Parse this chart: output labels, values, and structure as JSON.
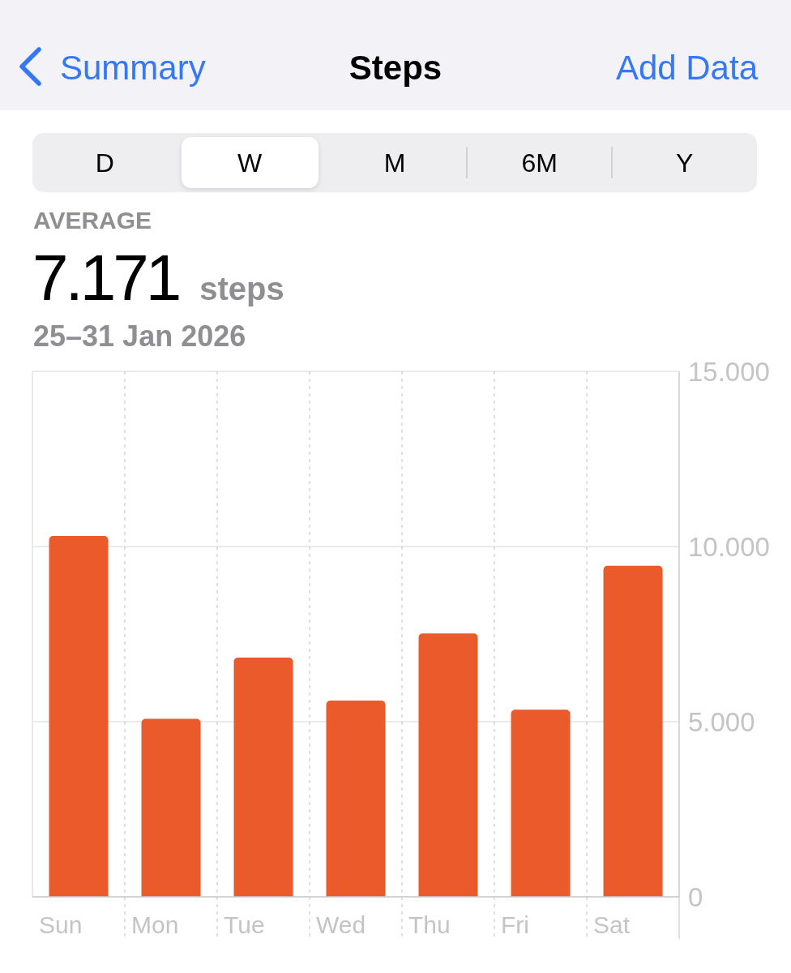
{
  "chart_data": {
    "type": "bar",
    "title": "Steps",
    "subtitle": "25–31 Jan 2026",
    "categories": [
      "Sun",
      "Mon",
      "Tue",
      "Wed",
      "Thu",
      "Fri",
      "Sat"
    ],
    "values": [
      10300,
      5080,
      6830,
      5600,
      7520,
      5340,
      9450
    ],
    "color": "#eb5a2b",
    "ylim": [
      0,
      15000
    ],
    "yticks": [
      0,
      {
        "value": 5000,
        "label": "5.000"
      },
      {
        "value": 10000,
        "label": "10.000"
      },
      {
        "value": 15000,
        "label": "15.000"
      }
    ],
    "grid": true,
    "annotations": [
      "Summary",
      "Add Data",
      "D",
      "W",
      "M",
      "6M",
      "Y",
      "AVERAGE",
      "7.171",
      "steps"
    ]
  }
}
